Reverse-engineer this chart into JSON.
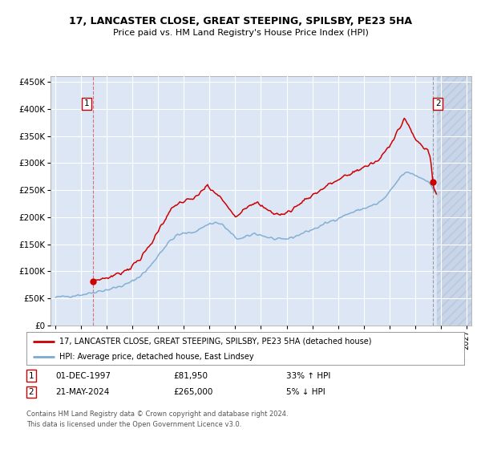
{
  "title": "17, LANCASTER CLOSE, GREAT STEEPING, SPILSBY, PE23 5HA",
  "subtitle": "Price paid vs. HM Land Registry's House Price Index (HPI)",
  "legend_line1": "17, LANCASTER CLOSE, GREAT STEEPING, SPILSBY, PE23 5HA (detached house)",
  "legend_line2": "HPI: Average price, detached house, East Lindsey",
  "transaction1_date": "01-DEC-1997",
  "transaction1_price": 81950,
  "transaction1_hpi": "33% ↑ HPI",
  "transaction2_date": "21-MAY-2024",
  "transaction2_price": 265000,
  "transaction2_hpi": "5% ↓ HPI",
  "footer": "Contains HM Land Registry data © Crown copyright and database right 2024.\nThis data is licensed under the Open Government Licence v3.0.",
  "red_color": "#cc0000",
  "blue_color": "#7aaad0",
  "background_color": "#dce6f5",
  "grid_color": "#ffffff",
  "ylim": [
    0,
    460000
  ],
  "yticks": [
    0,
    50000,
    100000,
    150000,
    200000,
    250000,
    300000,
    350000,
    400000,
    450000
  ],
  "t1_x_year": 1997.92,
  "t2_x_year": 2024.38,
  "future_start": 2024.7,
  "xmin": 1994.6,
  "xmax": 2027.4,
  "xtick_years": [
    1995,
    1997,
    1999,
    2001,
    2003,
    2005,
    2007,
    2009,
    2011,
    2013,
    2015,
    2017,
    2019,
    2021,
    2023,
    2025,
    2027
  ]
}
